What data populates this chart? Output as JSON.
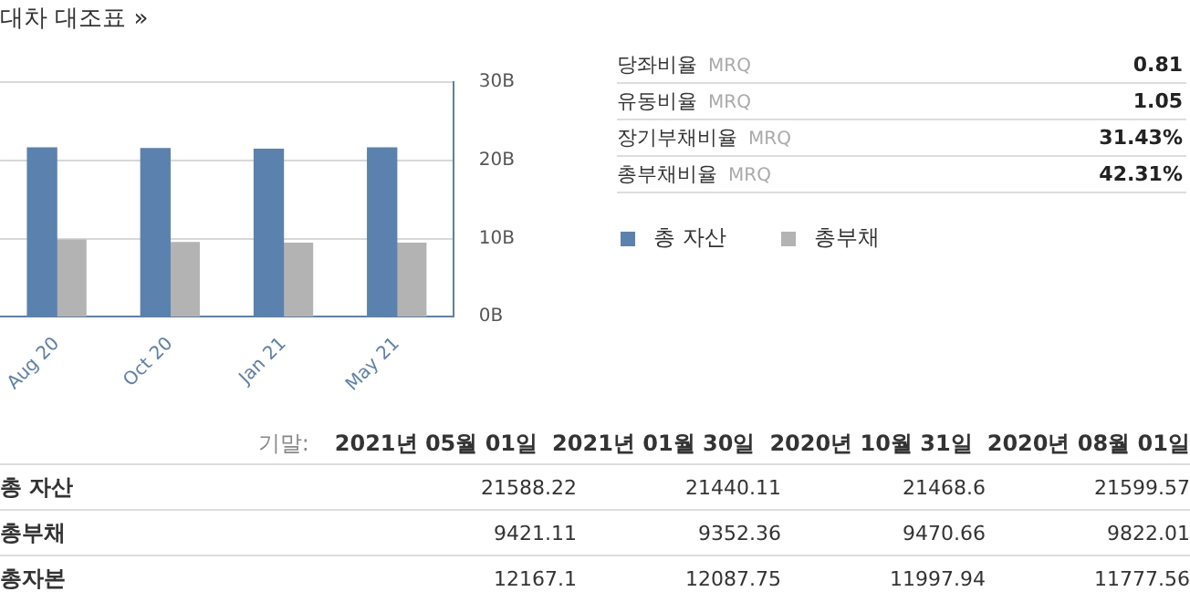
{
  "chart_data": [
    {
      "type": "bar",
      "title": "대차 대조표 »",
      "categories": [
        "Aug 20",
        "Oct 20",
        "Jan 21",
        "May 21"
      ],
      "series": [
        {
          "name": "총 자산",
          "color": "#5b81ae",
          "values": [
            21.6,
            21.5,
            21.4,
            21.6
          ]
        },
        {
          "name": "총부채",
          "color": "#b3b3b3",
          "values": [
            9.8,
            9.5,
            9.4,
            9.4
          ]
        }
      ],
      "ylim": [
        0,
        30
      ],
      "yticks": [
        {
          "value": 0,
          "label": "0B"
        },
        {
          "value": 10,
          "label": "10B"
        },
        {
          "value": 20,
          "label": "20B"
        },
        {
          "value": 30,
          "label": "30B"
        }
      ],
      "grid": "y",
      "legend": "right"
    },
    {
      "type": "other",
      "categories": [
        "당좌비율",
        "유동비율",
        "장기부채비율",
        "총부채비율"
      ],
      "value_labels": [
        "0.81",
        "1.05",
        "31.43%",
        "42.31%"
      ],
      "annotations": [
        "MRQ",
        "MRQ",
        "MRQ",
        "MRQ"
      ]
    },
    {
      "type": "other",
      "annotations": [
        "기말:"
      ],
      "categories": [
        "2021년 05월 01일",
        "2021년 01월 30일",
        "2020년 10월 31일",
        "2020년 08월 01일"
      ],
      "y_categories": [
        "총 자산",
        "총부채",
        "총자본"
      ],
      "cell_labels": [
        [
          "21588.22",
          "21440.11",
          "21468.6",
          "21599.57"
        ],
        [
          "9421.11",
          "9352.36",
          "9470.66",
          "9822.01"
        ],
        [
          "12167.1",
          "12087.75",
          "11997.94",
          "11777.56"
        ]
      ]
    }
  ]
}
